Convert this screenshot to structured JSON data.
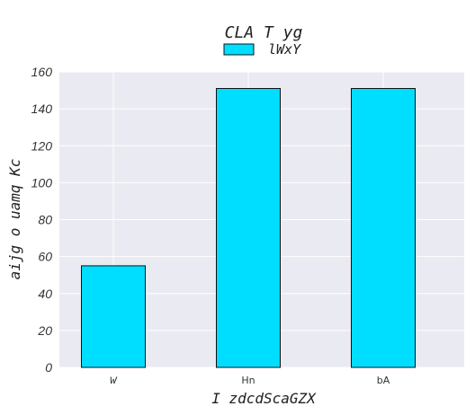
{
  "chart_data": {
    "type": "bar",
    "title": "CLA T yg",
    "xlabel": "I zdcdScaGZX",
    "ylabel": "aijg o uamq Kc",
    "categories": [
      "w",
      "Hn",
      "bA"
    ],
    "series": [
      {
        "name": "lWxY",
        "values": [
          55,
          151,
          151
        ]
      }
    ],
    "ylim": [
      0,
      160
    ],
    "yticks": [
      0,
      20,
      40,
      60,
      80,
      100,
      120,
      140,
      160
    ],
    "grid": true,
    "legend_position": "top-center",
    "colors": {
      "bar": "#00deff",
      "bar_edge": "#111111",
      "plot_bg": "#eaeaf2",
      "grid": "#ffffff"
    }
  }
}
